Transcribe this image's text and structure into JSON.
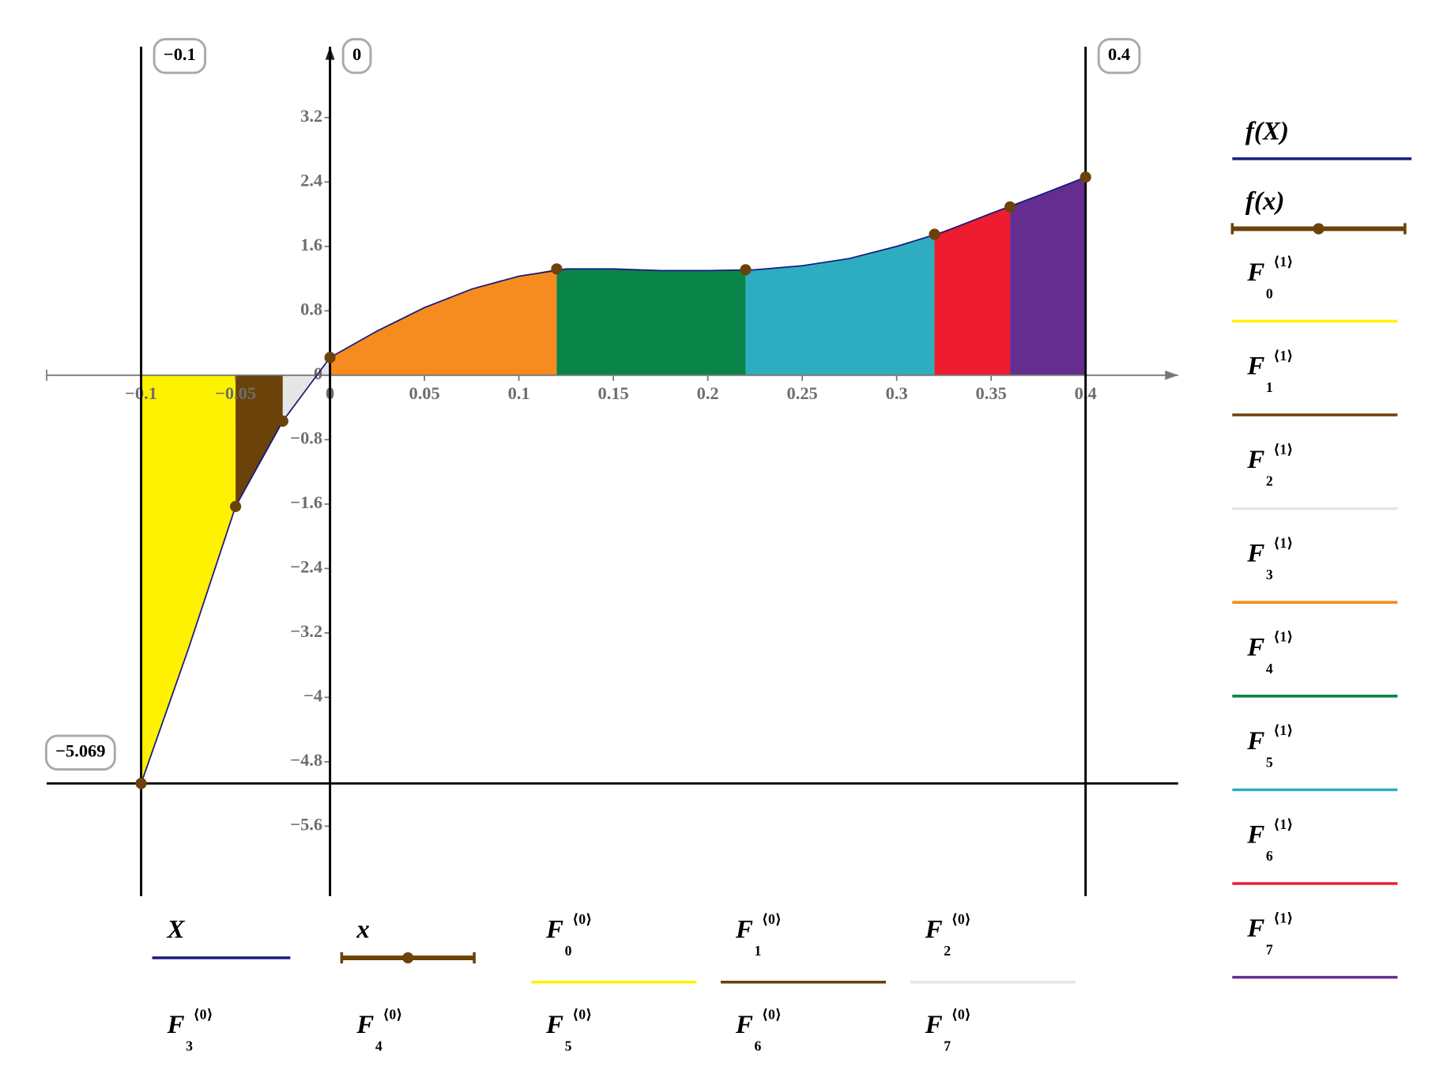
{
  "chart_data": {
    "type": "area",
    "xlim": [
      -0.15,
      0.449
    ],
    "ylim": [
      -6.47,
      4.08
    ],
    "xticks": [
      {
        "value": -0.1,
        "label": "−0.1"
      },
      {
        "value": -0.05,
        "label": "−0.05"
      },
      0,
      0.05,
      0.1,
      0.15,
      0.2,
      0.25,
      0.3,
      0.35,
      0.4
    ],
    "yticks": [
      {
        "value": -5.6,
        "label": "−5.6"
      },
      {
        "value": -4.8,
        "label": "−4.8"
      },
      {
        "value": -4,
        "label": "−4"
      },
      {
        "value": -3.2,
        "label": "−3.2"
      },
      {
        "value": -2.4,
        "label": "−2.4"
      },
      {
        "value": -1.6,
        "label": "−1.6"
      },
      {
        "value": -0.8,
        "label": "−0.8"
      },
      0,
      0.8,
      1.6,
      2.4,
      3.2
    ],
    "x_markers": [
      {
        "value": -0.1,
        "label": "−0.1"
      },
      0,
      0.4
    ],
    "y_markers": [
      {
        "value": -5.069,
        "label": "−5.069"
      }
    ],
    "series": [
      {
        "name": "f(X)",
        "x_name": "X",
        "kind": "line",
        "color": "#1a1a80",
        "x": [
          -0.1,
          -0.075,
          -0.05,
          -0.025,
          0,
          0.025,
          0.05,
          0.075,
          0.1,
          0.125,
          0.15,
          0.175,
          0.2,
          0.225,
          0.25,
          0.275,
          0.3,
          0.325,
          0.35,
          0.375,
          0.4
        ],
        "values": [
          -5.069,
          -3.4,
          -1.63,
          -0.57,
          0.22,
          0.55,
          0.84,
          1.07,
          1.23,
          1.32,
          1.32,
          1.3,
          1.3,
          1.31,
          1.36,
          1.45,
          1.6,
          1.78,
          2.01,
          2.23,
          2.46
        ]
      },
      {
        "name": "f(x)",
        "x_name": "x",
        "kind": "points",
        "color": "#6b4209",
        "x": [
          -0.1,
          -0.05,
          -0.025,
          0,
          0.12,
          0.22,
          0.32,
          0.36,
          0.4
        ],
        "values": [
          -5.069,
          -1.63,
          -0.57,
          0.22,
          1.32,
          1.31,
          1.75,
          2.09,
          2.46
        ]
      },
      {
        "name": "F",
        "index": "0",
        "x_superscript": "⟨0⟩",
        "y_superscript": "⟨1⟩",
        "kind": "area",
        "color": "#fff200",
        "x": [
          -0.1,
          -0.075,
          -0.05
        ],
        "values": [
          -5.069,
          -3.4,
          -1.63
        ]
      },
      {
        "name": "F",
        "index": "1",
        "x_superscript": "⟨0⟩",
        "y_superscript": "⟨1⟩",
        "kind": "area",
        "color": "#6b4209",
        "x": [
          -0.05,
          -0.025
        ],
        "values": [
          -1.63,
          -0.57
        ]
      },
      {
        "name": "F",
        "index": "2",
        "x_superscript": "⟨0⟩",
        "y_superscript": "⟨1⟩",
        "kind": "area",
        "color": "#e6e6e6",
        "x": [
          -0.025,
          0
        ],
        "values": [
          -0.57,
          0.22
        ]
      },
      {
        "name": "F",
        "index": "3",
        "x_superscript": "⟨0⟩",
        "y_superscript": "⟨1⟩",
        "kind": "area",
        "color": "#f68b1f",
        "x": [
          0,
          0.025,
          0.05,
          0.075,
          0.1,
          0.12
        ],
        "values": [
          0.22,
          0.55,
          0.84,
          1.07,
          1.23,
          1.32
        ]
      },
      {
        "name": "F",
        "index": "4",
        "x_superscript": "⟨0⟩",
        "y_superscript": "⟨1⟩",
        "kind": "area",
        "color": "#098449",
        "x": [
          0.12,
          0.15,
          0.175,
          0.2,
          0.22
        ],
        "values": [
          1.32,
          1.32,
          1.3,
          1.3,
          1.31
        ]
      },
      {
        "name": "F",
        "index": "5",
        "x_superscript": "⟨0⟩",
        "y_superscript": "⟨1⟩",
        "kind": "area",
        "color": "#2eadc1",
        "x": [
          0.22,
          0.25,
          0.275,
          0.3,
          0.32
        ],
        "values": [
          1.31,
          1.36,
          1.45,
          1.6,
          1.75
        ]
      },
      {
        "name": "F",
        "index": "6",
        "x_superscript": "⟨0⟩",
        "y_superscript": "⟨1⟩",
        "kind": "area",
        "color": "#ed1c2e",
        "x": [
          0.32,
          0.35,
          0.36
        ],
        "values": [
          1.75,
          2.01,
          2.09
        ]
      },
      {
        "name": "F",
        "index": "7",
        "x_superscript": "⟨0⟩",
        "y_superscript": "⟨1⟩",
        "kind": "area",
        "color": "#652d90",
        "x": [
          0.36,
          0.375,
          0.4
        ],
        "values": [
          2.09,
          2.23,
          2.46
        ]
      }
    ]
  }
}
